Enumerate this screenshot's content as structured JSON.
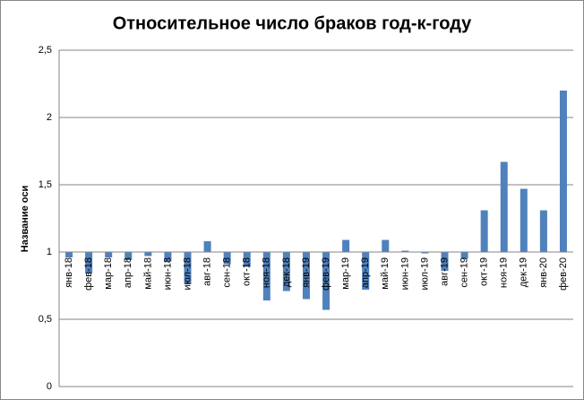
{
  "chart_data": {
    "type": "bar",
    "title": "Относительное число браков год-к-году",
    "y_axis_title": "Название оси",
    "categories": [
      "янв-18",
      "фев-18",
      "мар-18",
      "апр-18",
      "май-18",
      "июн-18",
      "июл-18",
      "авг-18",
      "сен-18",
      "окт-18",
      "ноя-18",
      "дек-18",
      "янв-19",
      "фев-19",
      "мар-19",
      "апр-19",
      "май-19",
      "июн-19",
      "июл-19",
      "авг-19",
      "сен-19",
      "окт-19",
      "ноя-19",
      "дек-19",
      "янв-20",
      "фев-20"
    ],
    "values": [
      0.96,
      0.84,
      0.96,
      0.94,
      0.97,
      0.93,
      0.76,
      1.08,
      0.91,
      0.89,
      0.64,
      0.71,
      0.65,
      0.57,
      1.09,
      0.72,
      1.09,
      1.01,
      0.99,
      0.86,
      0.95,
      1.31,
      1.67,
      1.47,
      1.31,
      2.2
    ],
    "color": "#4f81bd",
    "ylim": [
      0,
      2.5
    ],
    "yticks": [
      0,
      {
        "value": 0.5,
        "label": "0,5"
      },
      1,
      {
        "value": 1.5,
        "label": "1,5"
      },
      2,
      {
        "value": 2.5,
        "label": "2,5"
      }
    ],
    "x_axis_crosses": 1,
    "grid": true
  }
}
